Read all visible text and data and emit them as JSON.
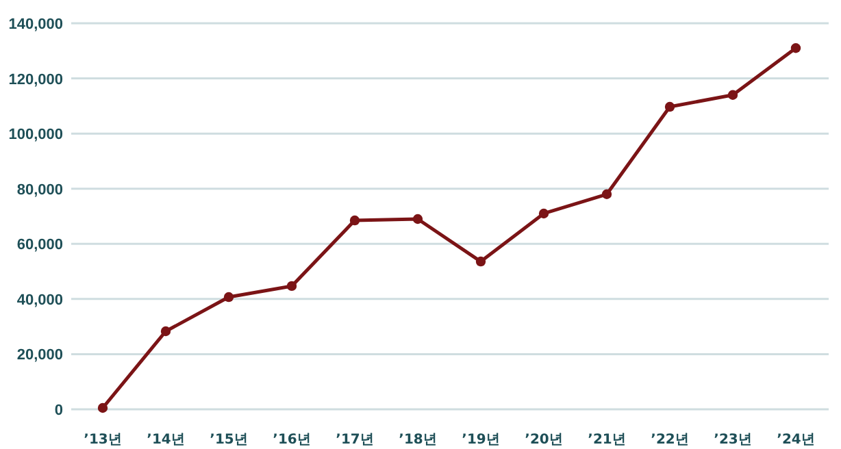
{
  "chart_data": {
    "type": "line",
    "categories": [
      "’13년",
      "’14년",
      "’15년",
      "’16년",
      "’17년",
      "’18년",
      "’19년",
      "’20년",
      "’21년",
      "’22년",
      "’23년",
      "’24년"
    ],
    "series": [
      {
        "color": "#7b1416",
        "values": [
          500,
          28300,
          40700,
          44700,
          68500,
          69000,
          53600,
          71000,
          78000,
          109700,
          114000,
          131000
        ]
      }
    ],
    "ylim": [
      0,
      140000
    ],
    "yticks": [
      {
        "value": 0,
        "label": "0"
      },
      {
        "value": 20000,
        "label": "20,000"
      },
      {
        "value": 40000,
        "label": "40,000"
      },
      {
        "value": 60000,
        "label": "60,000"
      },
      {
        "value": 80000,
        "label": "80,000"
      },
      {
        "value": 100000,
        "label": "100,000"
      },
      {
        "value": 120000,
        "label": "120,000"
      },
      {
        "value": 140000,
        "label": "140,000"
      }
    ],
    "grid": "y",
    "marker": "circle",
    "line_style": "solid"
  }
}
